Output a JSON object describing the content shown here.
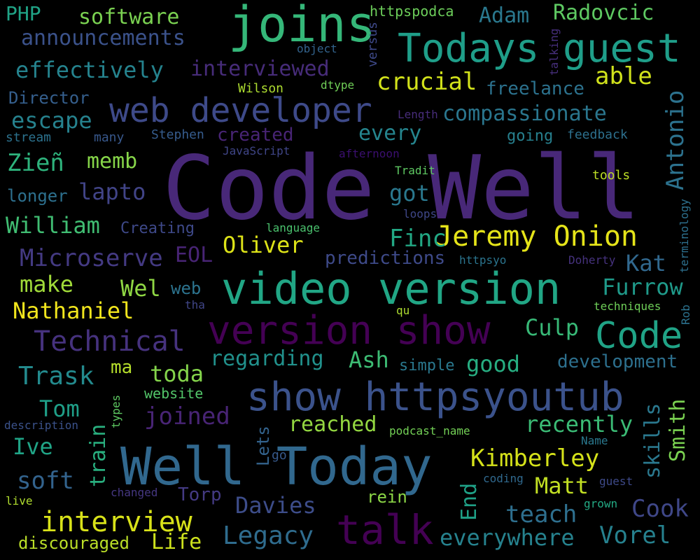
{
  "words": [
    {
      "text": "Code Well",
      "color": "#482878"
    },
    {
      "text": "video version",
      "color": "#21a685"
    },
    {
      "text": "Well Today",
      "color": "#31688e"
    },
    {
      "text": "show httpsyoutub",
      "color": "#3b528b"
    },
    {
      "text": "version show",
      "color": "#440154"
    },
    {
      "text": "joins",
      "color": "#35b779"
    },
    {
      "text": "Todays guest",
      "color": "#1f9e89"
    },
    {
      "text": "web developer",
      "color": "#3e4a89"
    },
    {
      "text": "Jeremy Onion",
      "color": "#e5e419"
    },
    {
      "text": "Code",
      "color": "#20a386"
    },
    {
      "text": "talk",
      "color": "#440154"
    },
    {
      "text": "Technical",
      "color": "#46327e"
    },
    {
      "text": "interview",
      "color": "#d8e219"
    },
    {
      "text": "Adam",
      "color": "#2a788e"
    },
    {
      "text": "Radovcic",
      "color": "#5ec962"
    },
    {
      "text": "software",
      "color": "#7ad151"
    },
    {
      "text": "announcements",
      "color": "#3b528b"
    },
    {
      "text": "effectively",
      "color": "#25838e"
    },
    {
      "text": "interviewed",
      "color": "#472c7a"
    },
    {
      "text": "crucial",
      "color": "#d2e21b"
    },
    {
      "text": "able",
      "color": "#d0e11c"
    },
    {
      "text": "freelance",
      "color": "#2c728e"
    },
    {
      "text": "compassionate",
      "color": "#2a768e"
    },
    {
      "text": "escape",
      "color": "#26828e"
    },
    {
      "text": "Director",
      "color": "#355f8d"
    },
    {
      "text": "every",
      "color": "#25858e"
    },
    {
      "text": "Antonio",
      "color": "#2c728e"
    },
    {
      "text": "Zieñ",
      "color": "#2eb37c"
    },
    {
      "text": "memb",
      "color": "#86d549"
    },
    {
      "text": "lapto",
      "color": "#414487"
    },
    {
      "text": "longer",
      "color": "#2d708e"
    },
    {
      "text": "got",
      "color": "#2a788e"
    },
    {
      "text": "William",
      "color": "#40bd72"
    },
    {
      "text": "Creating",
      "color": "#3e4989"
    },
    {
      "text": "Finc",
      "color": "#22a884"
    },
    {
      "text": "Oliver",
      "color": "#dde318"
    },
    {
      "text": "Microserve",
      "color": "#443a83"
    },
    {
      "text": "EOL",
      "color": "#482475"
    },
    {
      "text": "predictions",
      "color": "#3e4a89"
    },
    {
      "text": "Kat",
      "color": "#31688e"
    },
    {
      "text": "make",
      "color": "#a0da39"
    },
    {
      "text": "Wel",
      "color": "#8fd744"
    },
    {
      "text": "web",
      "color": "#2c738e"
    },
    {
      "text": "Furrow",
      "color": "#1f9a8a"
    },
    {
      "text": "Nathaniel",
      "color": "#f1e51d"
    },
    {
      "text": "Culp",
      "color": "#38b977"
    },
    {
      "text": "Trask",
      "color": "#238a8d"
    },
    {
      "text": "ma",
      "color": "#b5de2b"
    },
    {
      "text": "toda",
      "color": "#84d44b"
    },
    {
      "text": "regarding",
      "color": "#21918c"
    },
    {
      "text": "Ash",
      "color": "#3dbc74"
    },
    {
      "text": "simple",
      "color": "#2a788e"
    },
    {
      "text": "good",
      "color": "#27ad81"
    },
    {
      "text": "development",
      "color": "#2d708e"
    },
    {
      "text": "Tom",
      "color": "#1f9f88"
    },
    {
      "text": "joined",
      "color": "#482475"
    },
    {
      "text": "train",
      "color": "#29af7f"
    },
    {
      "text": "reached",
      "color": "#93d741"
    },
    {
      "text": "recently",
      "color": "#3bbb75"
    },
    {
      "text": "Smith",
      "color": "#7ad151"
    },
    {
      "text": "skills",
      "color": "#2a788e"
    },
    {
      "text": "Ive",
      "color": "#20a486"
    },
    {
      "text": "Kimberley",
      "color": "#d5e21a"
    },
    {
      "text": "soft",
      "color": "#33638d"
    },
    {
      "text": "Lets",
      "color": "#33638d"
    },
    {
      "text": "Matt",
      "color": "#c2df23"
    },
    {
      "text": "End",
      "color": "#1fa187"
    },
    {
      "text": "Torp",
      "color": "#443a83"
    },
    {
      "text": "Davies",
      "color": "#3d4d8a"
    },
    {
      "text": "teach",
      "color": "#2e6f8e"
    },
    {
      "text": "Cook",
      "color": "#3f4788"
    },
    {
      "text": "Life",
      "color": "#cde11d"
    },
    {
      "text": "discouraged",
      "color": "#bade28"
    },
    {
      "text": "Legacy",
      "color": "#2f6c8e"
    },
    {
      "text": "everywhere",
      "color": "#26828e"
    },
    {
      "text": "Vorel",
      "color": "#26818e"
    },
    {
      "text": "rein",
      "color": "#8bd646"
    },
    {
      "text": "PHP",
      "color": "#20a386"
    },
    {
      "text": "httpspodca",
      "color": "#6ccd5a"
    },
    {
      "text": "versus",
      "color": "#3e4989"
    },
    {
      "text": "object",
      "color": "#33638d"
    },
    {
      "text": "Wilson",
      "color": "#addc30"
    },
    {
      "text": "dtype",
      "color": "#70cf57"
    },
    {
      "text": "talking",
      "color": "#472f7d"
    },
    {
      "text": "Length",
      "color": "#472c7a"
    },
    {
      "text": "stream",
      "color": "#2c728e"
    },
    {
      "text": "many",
      "color": "#38588c"
    },
    {
      "text": "Stephen",
      "color": "#365c8d"
    },
    {
      "text": "created",
      "color": "#482475"
    },
    {
      "text": "JavaScript",
      "color": "#404688"
    },
    {
      "text": "going",
      "color": "#27808e"
    },
    {
      "text": "feedback",
      "color": "#2d708e"
    },
    {
      "text": "afternoon",
      "color": "#3b0f70"
    },
    {
      "text": "Tradit",
      "color": "#5ec962"
    },
    {
      "text": "tools",
      "color": "#bddf26"
    },
    {
      "text": "loops",
      "color": "#3f4788"
    },
    {
      "text": "language",
      "color": "#4ac16d"
    },
    {
      "text": "terminology",
      "color": "#2d708e"
    },
    {
      "text": "httpsyo",
      "color": "#2b748e"
    },
    {
      "text": "Doherty",
      "color": "#46327e"
    },
    {
      "text": "tha",
      "color": "#404688"
    },
    {
      "text": "qu",
      "color": "#addc30"
    },
    {
      "text": "techniques",
      "color": "#6ece58"
    },
    {
      "text": "Rob",
      "color": "#2c728e"
    },
    {
      "text": "website",
      "color": "#52c569"
    },
    {
      "text": "types",
      "color": "#5ec962"
    },
    {
      "text": "description",
      "color": "#3b528b"
    },
    {
      "text": "podcast_name",
      "color": "#73d056"
    },
    {
      "text": "Name",
      "color": "#2a788e"
    },
    {
      "text": "go",
      "color": "#375a8c"
    },
    {
      "text": "coding",
      "color": "#30698e"
    },
    {
      "text": "guest",
      "color": "#3e4a89"
    },
    {
      "text": "live",
      "color": "#b0dd2f"
    },
    {
      "text": "changed",
      "color": "#453781"
    },
    {
      "text": "grown",
      "color": "#23a983"
    }
  ]
}
